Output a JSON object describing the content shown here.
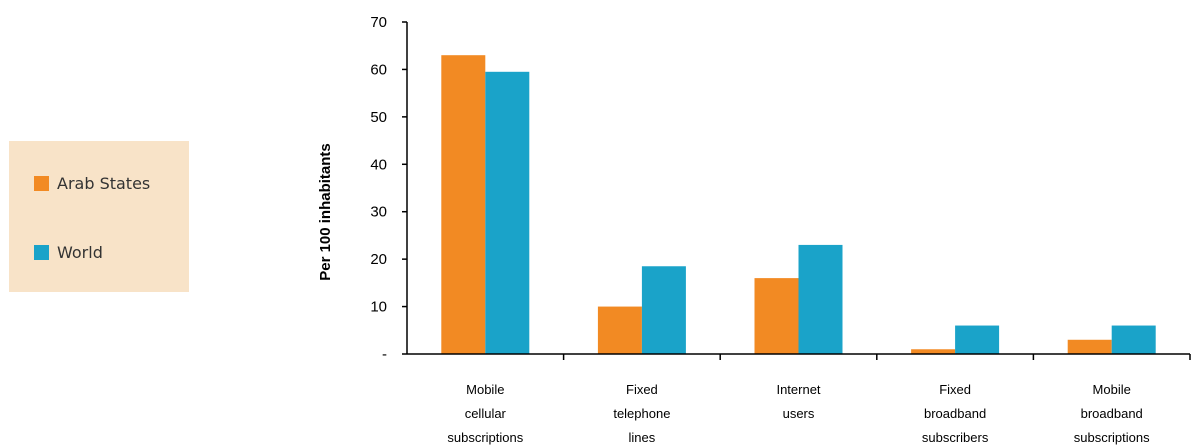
{
  "chart_data": {
    "type": "bar",
    "ylabel": "Per 100 inhabitants",
    "ylim": [
      0,
      70
    ],
    "ytick_labels": [
      "-",
      "10",
      "20",
      "30",
      "40",
      "50",
      "60",
      "70"
    ],
    "categories": [
      [
        "Mobile",
        "cellular",
        "subscriptions"
      ],
      [
        "Fixed",
        "telephone",
        "lines"
      ],
      [
        "Internet",
        "users"
      ],
      [
        "Fixed",
        "broadband",
        "subscribers"
      ],
      [
        "Mobile",
        "broadband",
        "subscriptions"
      ]
    ],
    "series": [
      {
        "name": "Arab States",
        "color": "#f28a23",
        "values": [
          63,
          10,
          16,
          1,
          3
        ]
      },
      {
        "name": "World",
        "color": "#1aa3c9",
        "values": [
          59.5,
          18.5,
          23,
          6,
          6
        ]
      }
    ],
    "legend": {
      "position": "left"
    }
  }
}
